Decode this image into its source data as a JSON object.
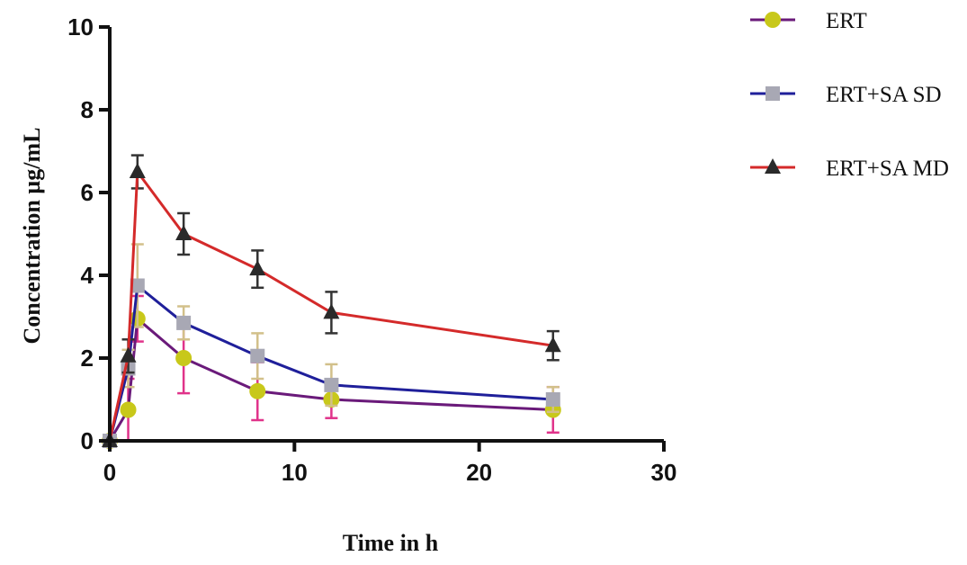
{
  "chart_data": {
    "type": "line",
    "xlabel": "Time in h",
    "ylabel": "Concentration  µg/mL",
    "xlim": [
      0,
      30
    ],
    "ylim": [
      0,
      10
    ],
    "xticks": [
      0,
      10,
      20,
      30
    ],
    "yticks": [
      0,
      2,
      4,
      6,
      8,
      10
    ],
    "legend_position": "top-right",
    "grid": false,
    "series": [
      {
        "name": "ERT",
        "marker": "circle",
        "line_color": "#6a1a7a",
        "marker_color": "#c8c81a",
        "error_color": "#e0338a",
        "x": [
          0,
          1,
          1.5,
          4,
          8,
          12,
          24
        ],
        "y": [
          0,
          0.75,
          2.95,
          2.0,
          1.2,
          1.0,
          0.75
        ],
        "err": [
          0,
          0.75,
          0.55,
          0.85,
          0.7,
          0.45,
          0.55
        ]
      },
      {
        "name": "ERT+SA SD",
        "marker": "square",
        "line_color": "#1f1f9a",
        "marker_color": "#a8a8b4",
        "error_color": "#d2c08a",
        "x": [
          0,
          1,
          1.5,
          4,
          8,
          12,
          24
        ],
        "y": [
          0,
          1.75,
          3.75,
          2.85,
          2.05,
          1.35,
          1.0
        ],
        "err": [
          0,
          0.45,
          1.0,
          0.4,
          0.55,
          0.5,
          0.3
        ]
      },
      {
        "name": "ERT+SA MD",
        "marker": "triangle",
        "line_color": "#d42a2a",
        "marker_color": "#2a2a2a",
        "error_color": "#333333",
        "x": [
          0,
          1,
          1.5,
          4,
          8,
          12,
          24
        ],
        "y": [
          0,
          2.05,
          6.5,
          5.0,
          4.15,
          3.1,
          2.3
        ],
        "err": [
          0,
          0.4,
          0.4,
          0.5,
          0.45,
          0.5,
          0.35
        ]
      }
    ]
  }
}
